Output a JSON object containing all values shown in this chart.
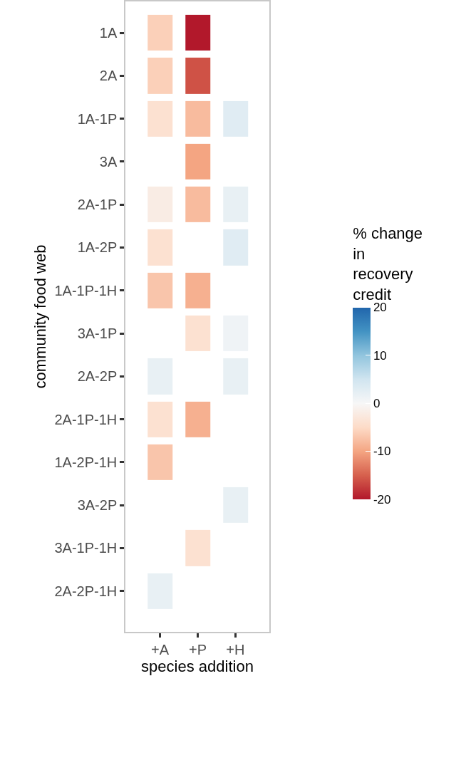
{
  "chart_data": {
    "type": "heatmap",
    "xlabel": "species addition",
    "ylabel": "community food web",
    "clabel": "% change in recovery credit",
    "categories": [
      "+A",
      "+P",
      "+H"
    ],
    "y_categories": [
      "1A",
      "2A",
      "1A-1P",
      "3A",
      "2A-1P",
      "1A-2P",
      "1A-1P-1H",
      "3A-1P",
      "2A-2P",
      "2A-1P-1H",
      "1A-2P-1H",
      "3A-2P",
      "3A-1P-1H",
      "2A-2P-1H"
    ],
    "cells": [
      [
        -6,
        -20,
        null
      ],
      [
        -6,
        -16,
        null
      ],
      [
        -4,
        -8,
        3
      ],
      [
        null,
        -10,
        null
      ],
      [
        -2,
        -8,
        2
      ],
      [
        -4,
        null,
        3
      ],
      [
        -7,
        -9,
        null
      ],
      [
        null,
        -4,
        1
      ],
      [
        2,
        null,
        2
      ],
      [
        -4,
        -9,
        null
      ],
      [
        -7,
        null,
        null
      ],
      [
        null,
        null,
        2
      ],
      [
        null,
        -4,
        null
      ],
      [
        2,
        null,
        null
      ]
    ],
    "clim": [
      -20,
      20
    ],
    "cticks": [
      -20,
      -10,
      0,
      10,
      20
    ],
    "grid": false
  }
}
